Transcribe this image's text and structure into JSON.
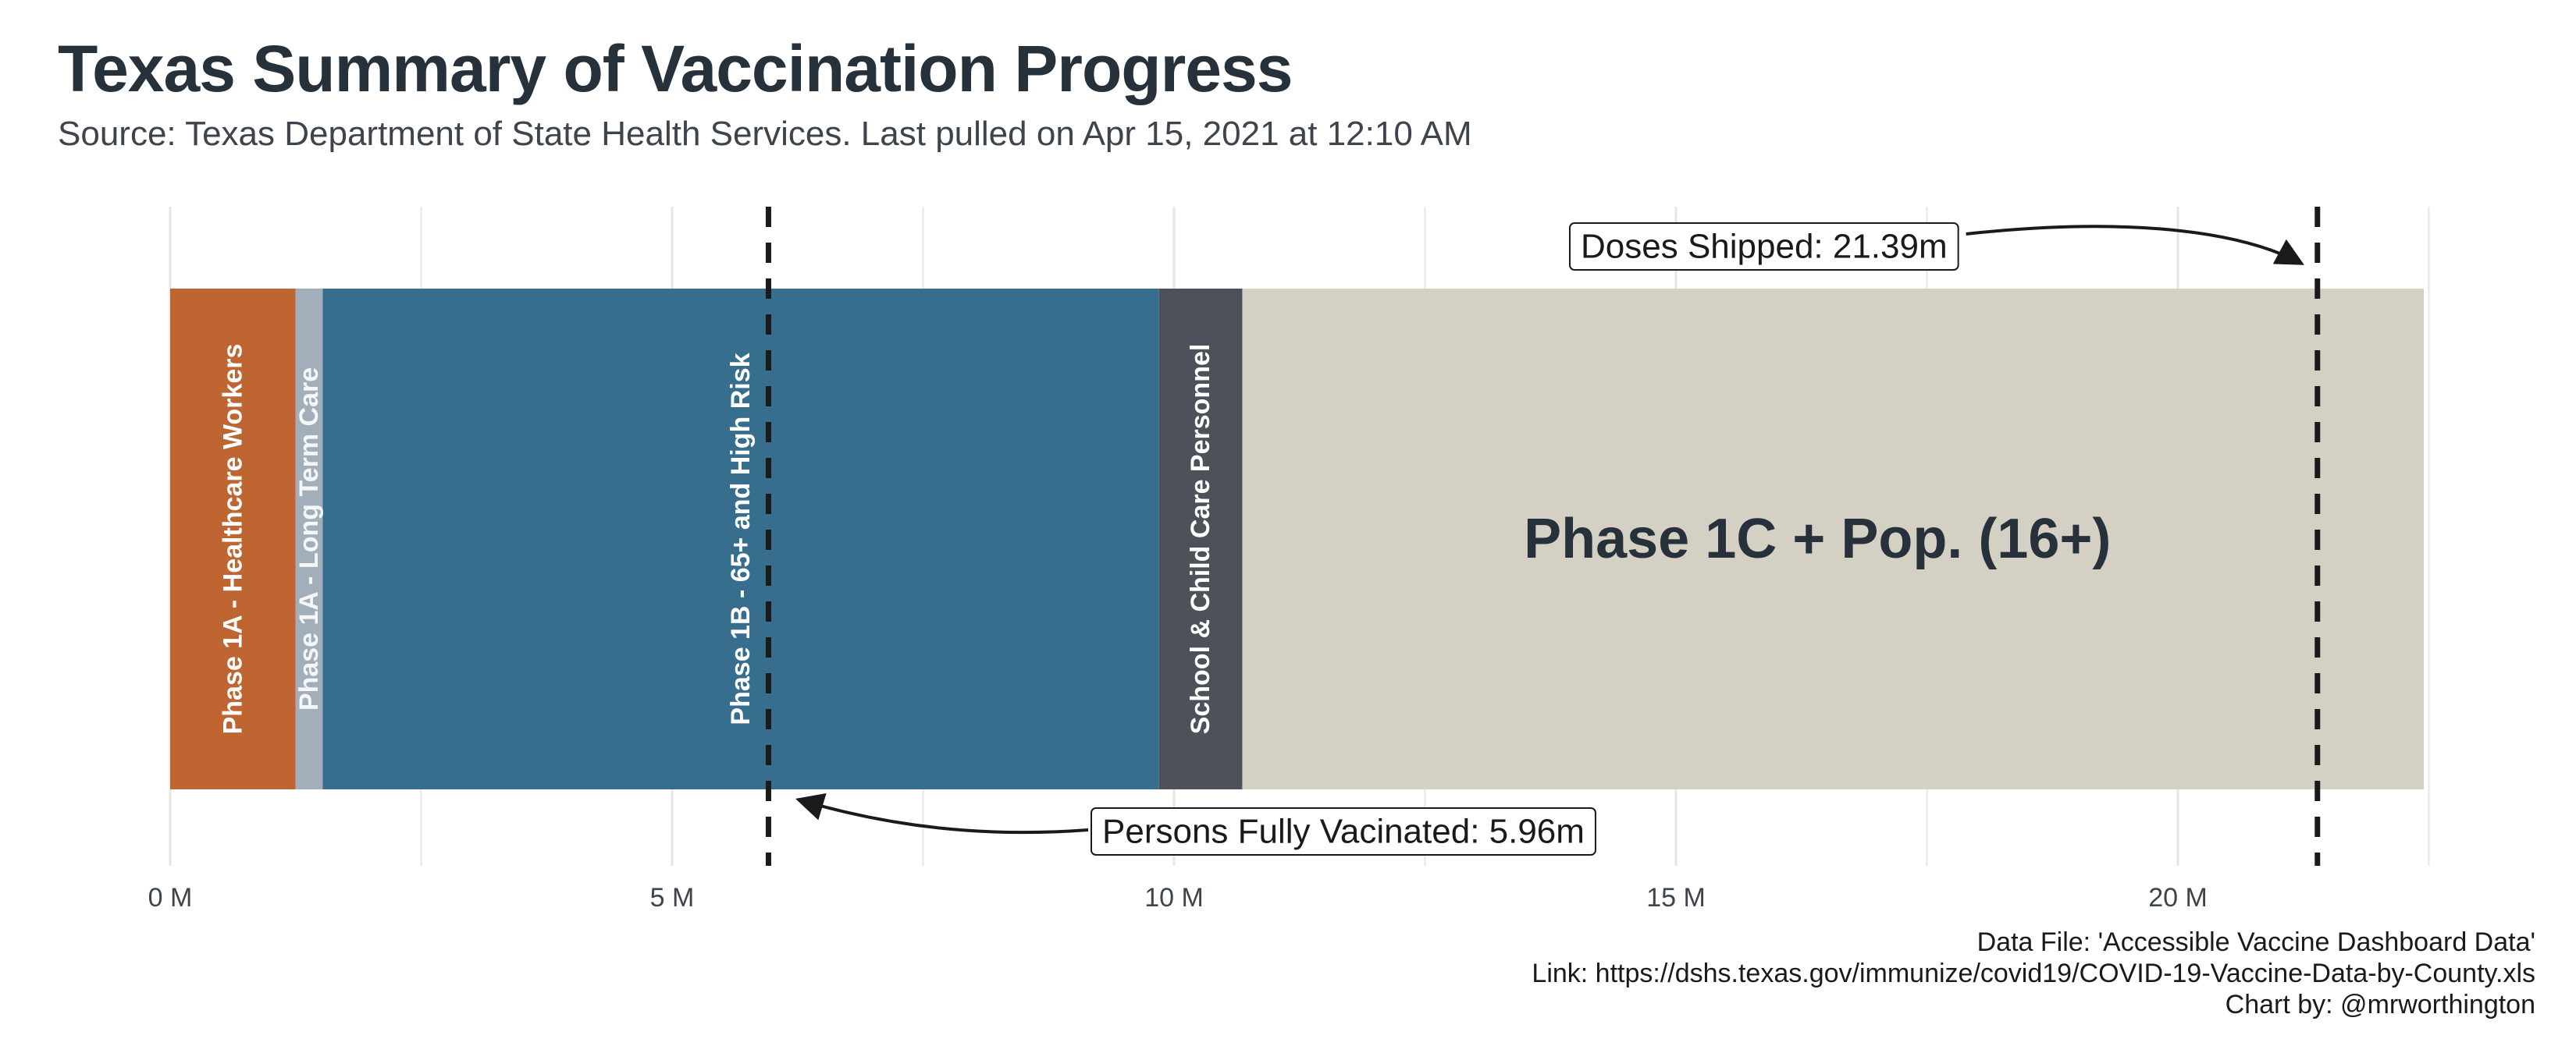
{
  "title": "Texas Summary of Vaccination Progress",
  "subtitle": "Source: Texas Department of State Health Services. Last pulled on Apr 15, 2021 at 12:10 AM",
  "caption": {
    "line1": "Data File: 'Accessible Vaccine Dashboard Data'",
    "line2": "Link: https://dshs.texas.gov/immunize/covid19/COVID-19-Vaccine-Data-by-County.xls",
    "line3": "Chart by: @mrworthington"
  },
  "colors": {
    "phase1a_healthcare": "#bf6532",
    "phase1a_ltc": "#a2afba",
    "phase1b": "#376e8e",
    "school": "#4d525a",
    "phase1c": "#d4d0c3",
    "grid": "#e6e6e6",
    "text_dark": "#26313b"
  },
  "chart_data": {
    "type": "bar",
    "orientation": "horizontal-stacked",
    "xlim": [
      0,
      22.5
    ],
    "x_ticks": [
      {
        "value": 0,
        "label": "0 M"
      },
      {
        "value": 5,
        "label": "5 M"
      },
      {
        "value": 10,
        "label": "10 M"
      },
      {
        "value": 15,
        "label": "15 M"
      },
      {
        "value": 20,
        "label": "20 M"
      }
    ],
    "grid": true,
    "segments": [
      {
        "label": "Phase 1A - Healthcare Workers",
        "start": 0,
        "end": 1.25,
        "color": "#bf6532",
        "label_orientation": "vertical"
      },
      {
        "label": "Phase 1A - Long Term Care",
        "start": 1.25,
        "end": 1.52,
        "color": "#a2afba",
        "label_orientation": "vertical"
      },
      {
        "label": "Phase 1B - 65+ and High Risk",
        "start": 1.52,
        "end": 9.85,
        "color": "#376e8e",
        "label_orientation": "vertical"
      },
      {
        "label": "School & Child Care Personnel",
        "start": 9.85,
        "end": 10.68,
        "color": "#4d525a",
        "label_orientation": "vertical"
      },
      {
        "label": "Phase 1C + Pop. (16+)",
        "start": 10.68,
        "end": 22.45,
        "color": "#d4d0c3",
        "label_orientation": "horizontal"
      }
    ],
    "reference_lines": [
      {
        "value": 5.96,
        "label": "Persons Fully Vacinated: 5.96m",
        "style": "dashed"
      },
      {
        "value": 21.39,
        "label": "Doses Shipped: 21.39m",
        "style": "dashed"
      }
    ]
  }
}
